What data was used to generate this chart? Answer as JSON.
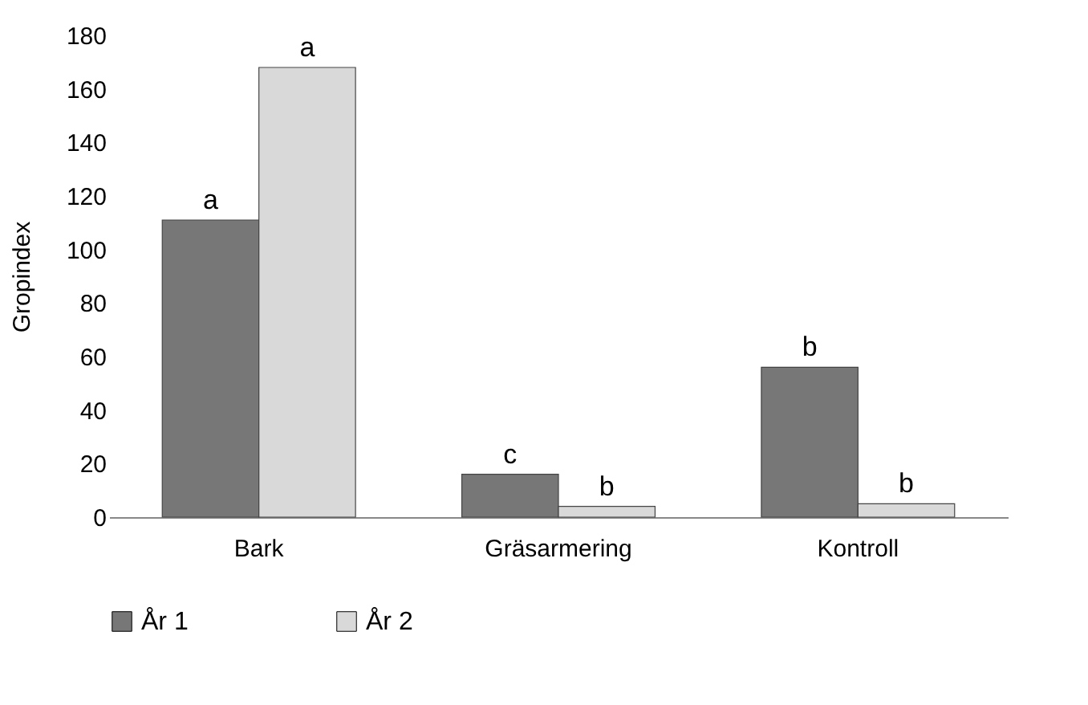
{
  "chart_data": {
    "type": "bar",
    "ylabel": "Gropindex",
    "categories": [
      "Bark",
      "Gräsarmering",
      "Kontroll"
    ],
    "series": [
      {
        "name": "År 1",
        "color": "#777777",
        "values": [
          111,
          16,
          56
        ],
        "value_labels": [
          "a",
          "c",
          "b"
        ]
      },
      {
        "name": "År 2",
        "color": "#d9d9d9",
        "values": [
          168,
          4,
          5
        ],
        "value_labels": [
          "a",
          "b",
          "b"
        ]
      }
    ],
    "ylim": [
      0,
      180
    ],
    "yticks": [
      0,
      20,
      40,
      60,
      80,
      100,
      120,
      140,
      160,
      180
    ],
    "grid": false,
    "legend": "bottom"
  }
}
